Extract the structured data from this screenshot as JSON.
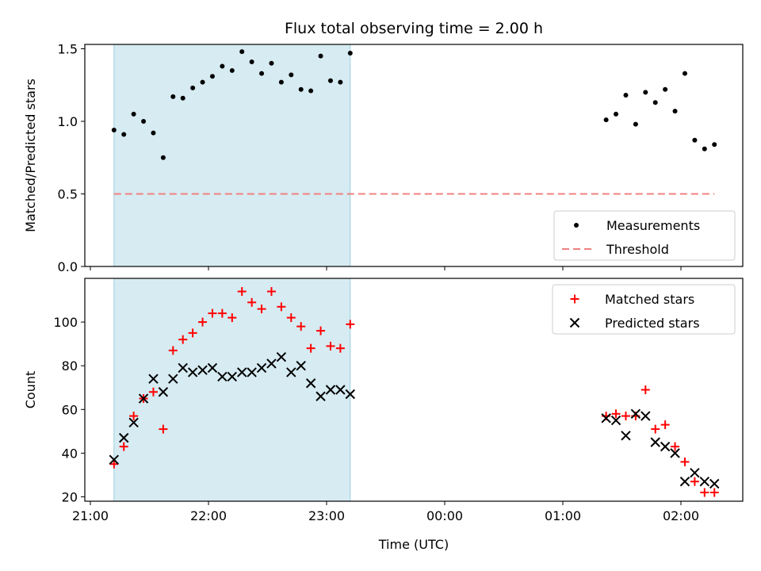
{
  "chart_data": [
    {
      "type": "scatter",
      "title": "Flux total observing time = 2.00 h",
      "xlabel": "",
      "ylabel": "Matched/Predicted stars",
      "ylim": [
        0,
        1.53
      ],
      "yticks": [
        "0.0",
        "0.5",
        "1.0",
        "1.5"
      ],
      "xticks": [
        "21:00",
        "22:00",
        "23:00",
        "00:00",
        "01:00",
        "02:00"
      ],
      "shaded_span": {
        "from": "21:12",
        "to": "23:12",
        "color": "#add8e6"
      },
      "legend": {
        "position": "lower-right",
        "entries": [
          "Measurements",
          "Threshold"
        ]
      },
      "series": [
        {
          "name": "Measurements",
          "color": "#000000",
          "marker": "dot",
          "points": [
            [
              "21:12",
              0.94
            ],
            [
              "21:17",
              0.91
            ],
            [
              "21:22",
              1.05
            ],
            [
              "21:27",
              1.0
            ],
            [
              "21:32",
              0.92
            ],
            [
              "21:37",
              0.75
            ],
            [
              "21:42",
              1.17
            ],
            [
              "21:47",
              1.16
            ],
            [
              "21:52",
              1.23
            ],
            [
              "21:57",
              1.27
            ],
            [
              "22:02",
              1.31
            ],
            [
              "22:07",
              1.38
            ],
            [
              "22:12",
              1.35
            ],
            [
              "22:17",
              1.48
            ],
            [
              "22:22",
              1.41
            ],
            [
              "22:27",
              1.33
            ],
            [
              "22:32",
              1.4
            ],
            [
              "22:37",
              1.27
            ],
            [
              "22:42",
              1.32
            ],
            [
              "22:47",
              1.22
            ],
            [
              "22:52",
              1.21
            ],
            [
              "22:57",
              1.45
            ],
            [
              "23:02",
              1.28
            ],
            [
              "23:07",
              1.27
            ],
            [
              "23:12",
              1.47
            ],
            [
              "01:22",
              1.01
            ],
            [
              "01:27",
              1.05
            ],
            [
              "01:32",
              1.18
            ],
            [
              "01:37",
              0.98
            ],
            [
              "01:42",
              1.2
            ],
            [
              "01:47",
              1.13
            ],
            [
              "01:52",
              1.22
            ],
            [
              "01:57",
              1.07
            ],
            [
              "02:02",
              1.33
            ],
            [
              "02:07",
              0.87
            ],
            [
              "02:12",
              0.81
            ],
            [
              "02:17",
              0.84
            ]
          ]
        },
        {
          "name": "Threshold",
          "color": "#f08080",
          "style": "dashed",
          "points": [
            [
              "21:12",
              0.5
            ],
            [
              "02:17",
              0.5
            ]
          ]
        }
      ]
    },
    {
      "type": "scatter",
      "title": "",
      "xlabel": "Time (UTC)",
      "ylabel": "Count",
      "ylim": [
        18,
        120
      ],
      "yticks": [
        "20",
        "40",
        "60",
        "80",
        "100"
      ],
      "xticks": [
        "21:00",
        "22:00",
        "23:00",
        "00:00",
        "01:00",
        "02:00"
      ],
      "shaded_span": {
        "from": "21:12",
        "to": "23:12",
        "color": "#add8e6"
      },
      "legend": {
        "position": "upper-right",
        "entries": [
          "Matched stars",
          "Predicted stars"
        ]
      },
      "series": [
        {
          "name": "Matched stars",
          "color": "#ff0000",
          "marker": "plus",
          "points": [
            [
              "21:12",
              35
            ],
            [
              "21:17",
              43
            ],
            [
              "21:22",
              57
            ],
            [
              "21:27",
              65
            ],
            [
              "21:32",
              68
            ],
            [
              "21:37",
              51
            ],
            [
              "21:42",
              87
            ],
            [
              "21:47",
              92
            ],
            [
              "21:52",
              95
            ],
            [
              "21:57",
              100
            ],
            [
              "22:02",
              104
            ],
            [
              "22:07",
              104
            ],
            [
              "22:12",
              102
            ],
            [
              "22:17",
              114
            ],
            [
              "22:22",
              109
            ],
            [
              "22:27",
              106
            ],
            [
              "22:32",
              114
            ],
            [
              "22:37",
              107
            ],
            [
              "22:42",
              102
            ],
            [
              "22:47",
              98
            ],
            [
              "22:52",
              88
            ],
            [
              "22:57",
              96
            ],
            [
              "23:02",
              89
            ],
            [
              "23:07",
              88
            ],
            [
              "23:12",
              99
            ],
            [
              "01:22",
              57
            ],
            [
              "01:27",
              58
            ],
            [
              "01:32",
              57
            ],
            [
              "01:37",
              57
            ],
            [
              "01:42",
              69
            ],
            [
              "01:47",
              51
            ],
            [
              "01:52",
              53
            ],
            [
              "01:57",
              43
            ],
            [
              "02:02",
              36
            ],
            [
              "02:07",
              27
            ],
            [
              "02:12",
              22
            ],
            [
              "02:17",
              22
            ]
          ]
        },
        {
          "name": "Predicted stars",
          "color": "#000000",
          "marker": "x",
          "points": [
            [
              "21:12",
              37
            ],
            [
              "21:17",
              47
            ],
            [
              "21:22",
              54
            ],
            [
              "21:27",
              65
            ],
            [
              "21:32",
              74
            ],
            [
              "21:37",
              68
            ],
            [
              "21:42",
              74
            ],
            [
              "21:47",
              79
            ],
            [
              "21:52",
              77
            ],
            [
              "21:57",
              78
            ],
            [
              "22:02",
              79
            ],
            [
              "22:07",
              75
            ],
            [
              "22:12",
              75
            ],
            [
              "22:17",
              77
            ],
            [
              "22:22",
              77
            ],
            [
              "22:27",
              79
            ],
            [
              "22:32",
              81
            ],
            [
              "22:37",
              84
            ],
            [
              "22:42",
              77
            ],
            [
              "22:47",
              80
            ],
            [
              "22:52",
              72
            ],
            [
              "22:57",
              66
            ],
            [
              "23:02",
              69
            ],
            [
              "23:07",
              69
            ],
            [
              "23:12",
              67
            ],
            [
              "01:22",
              56
            ],
            [
              "01:27",
              55
            ],
            [
              "01:32",
              48
            ],
            [
              "01:37",
              58
            ],
            [
              "01:42",
              57
            ],
            [
              "01:47",
              45
            ],
            [
              "01:52",
              43
            ],
            [
              "01:57",
              40
            ],
            [
              "02:02",
              27
            ],
            [
              "02:07",
              31
            ],
            [
              "02:12",
              27
            ],
            [
              "02:17",
              26
            ]
          ]
        }
      ]
    }
  ]
}
